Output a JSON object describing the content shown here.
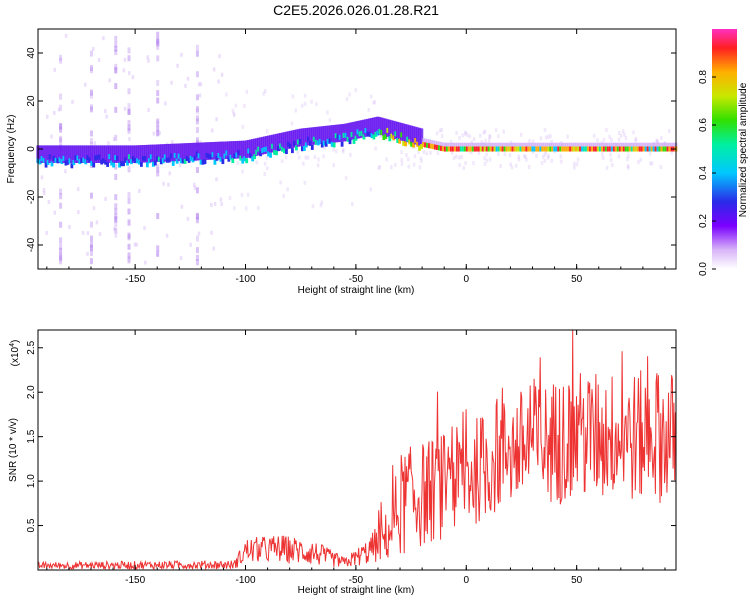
{
  "title": "C2E5.2026.026.01.28.R21",
  "chart_data": [
    {
      "type": "heatmap",
      "xlabel": "Height of straight line (km)",
      "ylabel": "Frequency (Hz)",
      "xlim": [
        -194,
        95
      ],
      "ylim": [
        -50,
        50
      ],
      "xticks": [
        -150,
        -100,
        -50,
        0,
        50
      ],
      "yticks": [
        -40,
        -20,
        0,
        20,
        40
      ],
      "colorbar": {
        "label": "Normalized spectral amplitude",
        "range": [
          0.0,
          1.0
        ],
        "ticks": [
          "0.0",
          "0.2",
          "0.4",
          "0.6",
          "0.8"
        ]
      },
      "ridge": [
        {
          "x": -194,
          "freq": -5
        },
        {
          "x": -150,
          "freq": -5
        },
        {
          "x": -100,
          "freq": -3
        },
        {
          "x": -75,
          "freq": 2
        },
        {
          "x": -55,
          "freq": 4
        },
        {
          "x": -40,
          "freq": 7
        },
        {
          "x": -32,
          "freq": 5
        },
        {
          "x": -20,
          "freq": 2
        },
        {
          "x": -10,
          "freq": 0
        },
        {
          "x": 0,
          "freq": 0
        },
        {
          "x": 20,
          "freq": 0
        },
        {
          "x": 50,
          "freq": 0
        },
        {
          "x": 95,
          "freq": 0
        }
      ]
    },
    {
      "type": "line",
      "xlabel": "Height of straight line (km)",
      "ylabel": "SNR (10 * v/v)",
      "y_multiplier": "(x10",
      "y_exponent": "4",
      "y_close": ")",
      "xlim": [
        -194,
        95
      ],
      "ylim": [
        0,
        2.7
      ],
      "xticks": [
        -150,
        -100,
        -50,
        0,
        50
      ],
      "yticks": [
        "0.5",
        "1.0",
        "1.5",
        "2.0",
        "2.5"
      ],
      "color": "#ee3333",
      "envelope": [
        {
          "x": -194,
          "mean": 0.05,
          "amp": 0.04
        },
        {
          "x": -105,
          "mean": 0.06,
          "amp": 0.05
        },
        {
          "x": -100,
          "mean": 0.22,
          "amp": 0.14
        },
        {
          "x": -85,
          "mean": 0.24,
          "amp": 0.16
        },
        {
          "x": -70,
          "mean": 0.2,
          "amp": 0.15
        },
        {
          "x": -55,
          "mean": 0.08,
          "amp": 0.06
        },
        {
          "x": -45,
          "mean": 0.2,
          "amp": 0.14
        },
        {
          "x": -35,
          "mean": 0.4,
          "amp": 0.3
        },
        {
          "x": -30,
          "mean": 0.75,
          "amp": 0.6
        },
        {
          "x": -15,
          "mean": 0.9,
          "amp": 0.6
        },
        {
          "x": 0,
          "mean": 1.05,
          "amp": 0.6
        },
        {
          "x": 20,
          "mean": 1.35,
          "amp": 0.65
        },
        {
          "x": 50,
          "mean": 1.5,
          "amp": 0.75
        },
        {
          "x": 95,
          "mean": 1.5,
          "amp": 0.75
        }
      ]
    }
  ]
}
